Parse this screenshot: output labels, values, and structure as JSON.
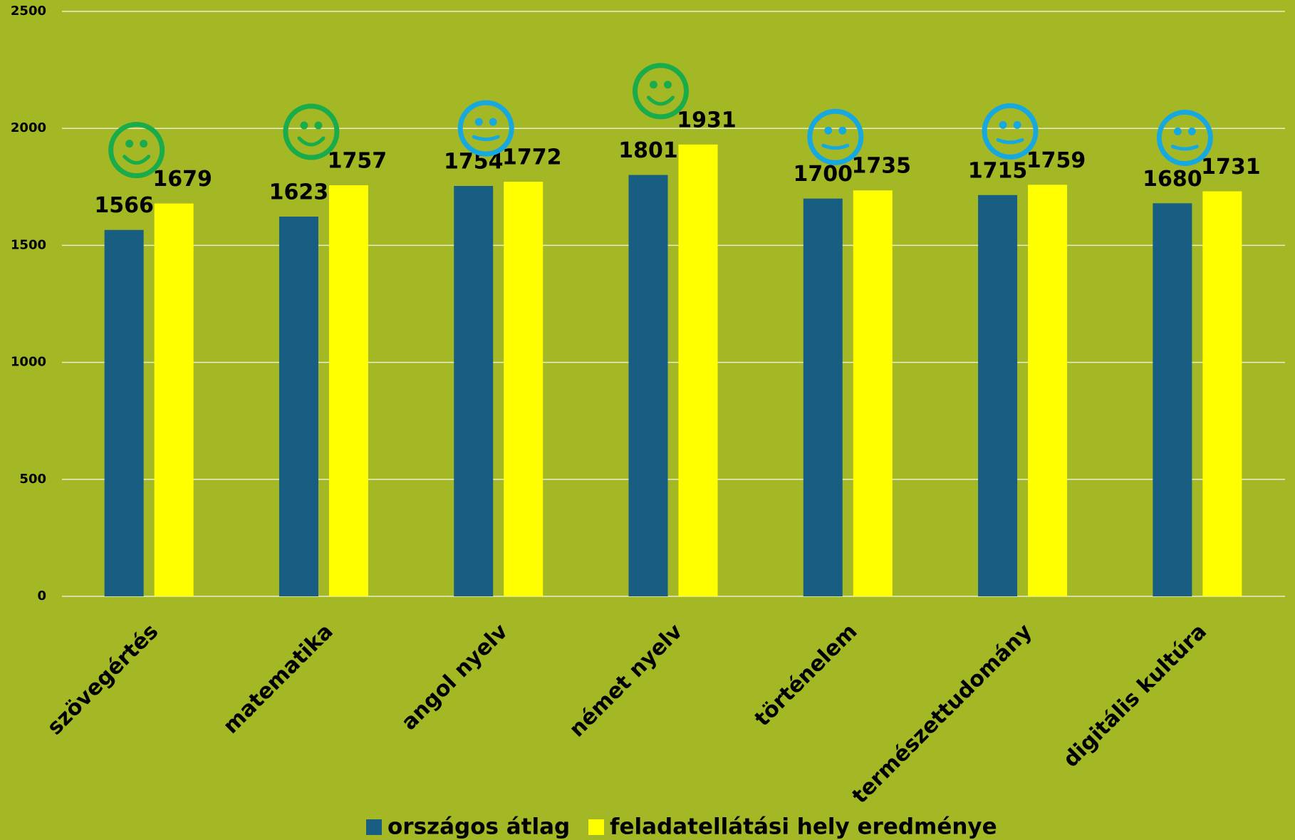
{
  "chart_data": {
    "type": "bar",
    "categories": [
      "szövegértés",
      "matematika",
      "angol nyelv",
      "német nyelv",
      "történelem",
      "természettudomány",
      "digitális kultúra"
    ],
    "series": [
      {
        "name": "országos átlag",
        "color": "#175e82",
        "values": [
          1566,
          1623,
          1754,
          1801,
          1700,
          1715,
          1680
        ]
      },
      {
        "name": "feladatellátási hely eredménye",
        "color": "#ffff00",
        "values": [
          1679,
          1757,
          1772,
          1931,
          1735,
          1759,
          1731
        ]
      }
    ],
    "ylim": [
      0,
      2500
    ],
    "yticks": [
      0,
      500,
      1000,
      1500,
      2000,
      2500
    ],
    "grid": true,
    "legend": "bottom"
  }
}
